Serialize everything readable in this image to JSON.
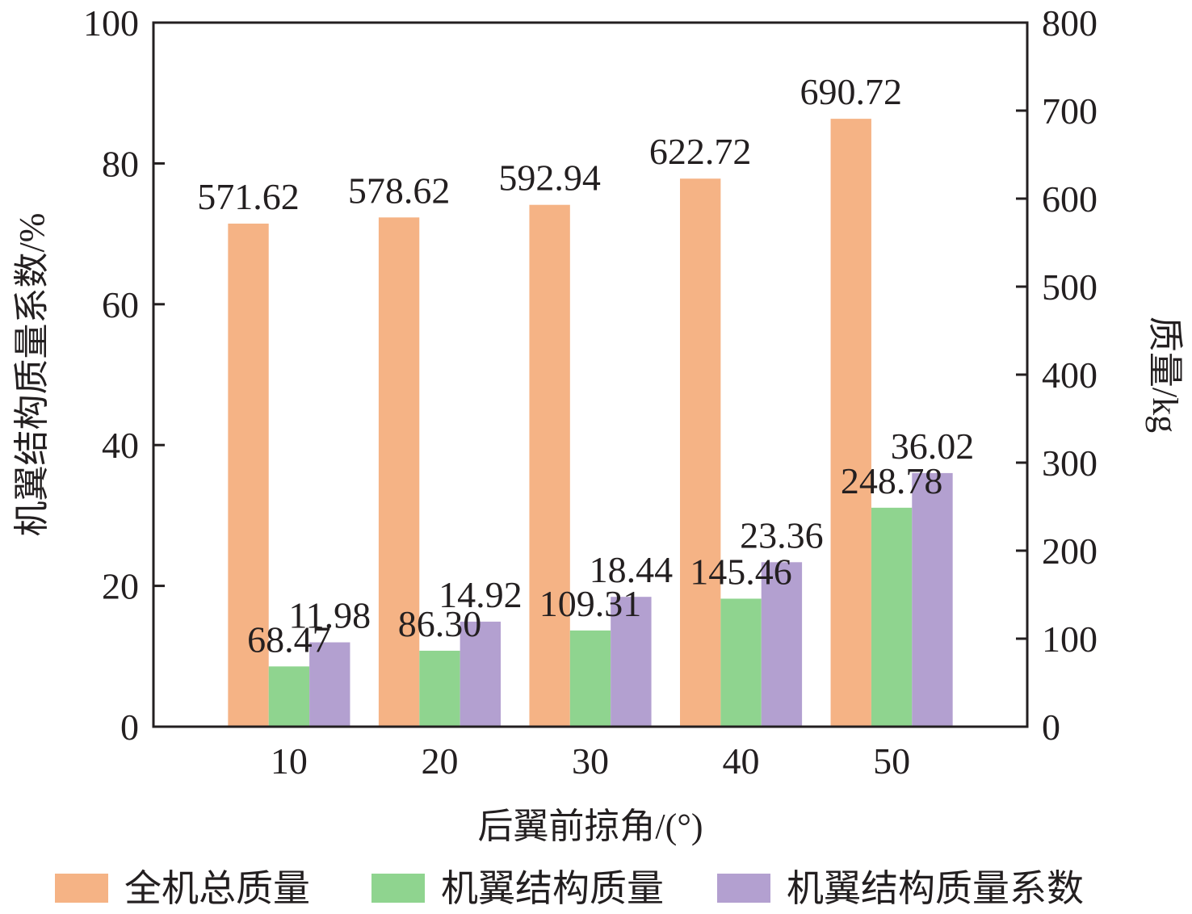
{
  "chart_data": {
    "type": "bar",
    "xlabel": "后翼前掠角/(°)",
    "ylabel_left": "机翼结构质量系数/%",
    "ylabel_right": "质量/kg",
    "categories": [
      "10",
      "20",
      "30",
      "40",
      "50"
    ],
    "ylim_left": [
      0,
      100
    ],
    "ylim_right": [
      0,
      800
    ],
    "yticks_left": [
      "0",
      "20",
      "40",
      "60",
      "80",
      "100"
    ],
    "yticks_right": [
      "0",
      "100",
      "200",
      "300",
      "400",
      "500",
      "600",
      "700",
      "800"
    ],
    "grid": false,
    "legend_position": "bottom",
    "series": [
      {
        "name": "全机总质量",
        "axis": "right",
        "color": "#f5b385",
        "values": [
          571.62,
          578.62,
          592.94,
          622.72,
          690.72
        ],
        "labels": [
          "571.62",
          "578.62",
          "592.94",
          "622.72",
          "690.72"
        ]
      },
      {
        "name": "机翼结构质量",
        "axis": "right",
        "color": "#8fd48f",
        "values": [
          68.47,
          86.3,
          109.31,
          145.46,
          248.78
        ],
        "labels": [
          "68.47",
          "86.30",
          "109.31",
          "145.46",
          "248.78"
        ]
      },
      {
        "name": "机翼结构质量系数",
        "axis": "left",
        "color": "#b3a0d0",
        "values": [
          11.98,
          14.92,
          18.44,
          23.36,
          36.02
        ],
        "labels": [
          "11.98",
          "14.92",
          "18.44",
          "23.36",
          "36.02"
        ]
      }
    ]
  }
}
